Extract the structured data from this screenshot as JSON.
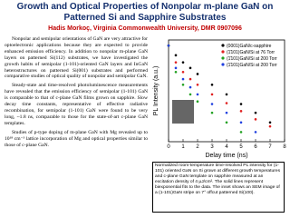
{
  "header": {
    "title": "Growth and Optical Properties of Nonpolar m-plane GaN on Patterned Si and Sapphire Substrates",
    "authors": "Hadis Morkoç, Virginia Commonwealth University, DMR 0907096"
  },
  "body": {
    "paragraphs": [
      "Nonpolar and semipolar orientations of GaN are very attractive for optoelectronic applications because they are expected to provide enhanced emission efficiency. In addition to nonpolar m-plane GaN layers on patterned Si(112) substrates, we have investigated the growth habits of semipolar (1-101)-oriented GaN layers and InGaN heterostructures on patterned Si(001) substrates and performed comparative studies of optical quality of nonpolar and semipolar GaN.",
      "Steady-state and time-resolved photoluminescence measurements have revealed that the emission efficiency of semipolar (1-101) GaN is comparable to that of c-plane GaN films grown on sapphire. Slow decay time constants, representative of effective radiative recombination, for semipolar (1-101) GaN were found to be very long, ~1.8 ns, comparable to those for the state-of-art c-plane GaN templates.",
      "Studies of p-type doping of m-plane GaN with Mg revealed up to 10¹⁸ cm⁻³ lattice incorporation of Mg and optical properties similar to those of c-plane GaN."
    ]
  },
  "chart_data": {
    "type": "scatter",
    "x_label": "Delay time (ns)",
    "y_label": "PL Intensity (a.u.)",
    "x": [
      0,
      0.5,
      1,
      1.5,
      2,
      3,
      4,
      5,
      6,
      7
    ],
    "xlim": [
      0,
      8
    ],
    "xticks": [
      0,
      1,
      2,
      3,
      4,
      5,
      6,
      7,
      8
    ],
    "ylim": [
      0.001,
      1.5
    ],
    "log_y": true,
    "legend": "upper right",
    "series": [
      {
        "name": "(0001)GaN/c-sapphire",
        "color": "#000000",
        "values": [
          1,
          0.5,
          0.3,
          0.2,
          0.13,
          0.06,
          0.03,
          0.015,
          0.008,
          0.004
        ]
      },
      {
        "name": "(1̄101)GaN/Si at 76 Torr",
        "color": "#e02020",
        "values": [
          1,
          0.3,
          0.15,
          0.09,
          0.06,
          0.03,
          0.016,
          0.009,
          0.005,
          0.003
        ]
      },
      {
        "name": "(1̄101)GaN/Si at 200 Torr",
        "color": "#20a020",
        "values": [
          1,
          0.15,
          0.06,
          0.03,
          0.018,
          0.008,
          0.004,
          0.002,
          null,
          null
        ]
      },
      {
        "name": "(1̄101)GaN/Si at 200 Torr",
        "color": "#2040e0",
        "values": [
          1,
          0.2,
          0.09,
          0.05,
          0.03,
          0.015,
          0.008,
          0.004,
          0.002,
          null
        ]
      }
    ]
  },
  "caption": "Normalized room-temperature time-resolved PL intensity for (1-101) oriented GaN on Si grown at different growth temperatures and c-plane GaN template on sapphire measured at an excitation density of 4 μJ/cm². The solid lines represent biexponential fits to the data. The inset shows an SEM image of a (1-101)GaN stripe on 7° offcut patterned Si(100)."
}
